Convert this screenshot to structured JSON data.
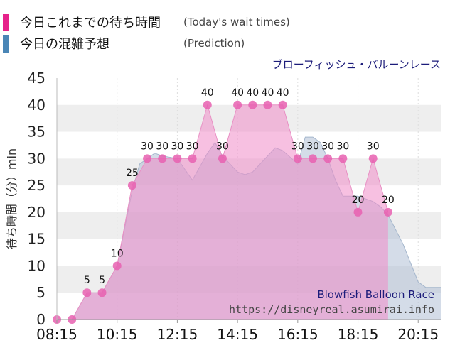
{
  "legend": {
    "actual_label": "今日これまでの待ち時間",
    "actual_sub": "(Today's wait times)",
    "prediction_label": "今日の混雑予想",
    "prediction_sub": "(Prediction)"
  },
  "attraction_name_jp": "ブローフィッシュ・バルーンレース",
  "watermark": {
    "name": "Blowfish Balloon Race",
    "url": "https://disneyreal.asumirai.info"
  },
  "colors": {
    "actual_legend": "#e6228a",
    "prediction_legend": "#4a86b6",
    "actual_fill": "#f08cc8",
    "actual_point": "#e860b0",
    "prediction_fill": "#b0c0d6",
    "plot_band": "#eeeeee",
    "title_text": "#1c1c7a"
  },
  "chart_data": {
    "type": "area",
    "xlabel": "",
    "ylabel": "待ち時間（分）min",
    "ylim": [
      0,
      45
    ],
    "xlim": [
      "08:15",
      "21:00"
    ],
    "yticks": [
      0,
      5,
      10,
      15,
      20,
      25,
      30,
      35,
      40,
      45
    ],
    "xticks": [
      "08:15",
      "10:15",
      "12:15",
      "14:15",
      "16:15",
      "18:15",
      "20:15"
    ],
    "grid": true,
    "series": [
      {
        "name": "今日の混雑予想",
        "points": [
          [
            "08:15",
            0
          ],
          [
            "08:45",
            0
          ],
          [
            "09:15",
            5
          ],
          [
            "09:45",
            5
          ],
          [
            "10:15",
            10
          ],
          [
            "10:45",
            24
          ],
          [
            "11:00",
            29
          ],
          [
            "11:30",
            31
          ],
          [
            "11:45",
            30.5
          ],
          [
            "12:15",
            30
          ],
          [
            "12:45",
            26
          ],
          [
            "13:15",
            31
          ],
          [
            "13:30",
            33
          ],
          [
            "13:45",
            30.5
          ],
          [
            "14:15",
            27.5
          ],
          [
            "14:30",
            27
          ],
          [
            "14:45",
            27.5
          ],
          [
            "15:15",
            30.5
          ],
          [
            "15:30",
            32
          ],
          [
            "15:45",
            31.5
          ],
          [
            "16:15",
            29
          ],
          [
            "16:30",
            34
          ],
          [
            "16:45",
            34
          ],
          [
            "17:00",
            33
          ],
          [
            "17:15",
            30
          ],
          [
            "17:30",
            26
          ],
          [
            "17:45",
            23
          ],
          [
            "18:15",
            23
          ],
          [
            "18:45",
            22
          ],
          [
            "19:00",
            21
          ],
          [
            "19:15",
            19.5
          ],
          [
            "19:45",
            14
          ],
          [
            "20:15",
            7
          ],
          [
            "20:30",
            6
          ],
          [
            "21:00",
            6
          ]
        ]
      },
      {
        "name": "今日これまでの待ち時間",
        "points": [
          [
            "08:15",
            0
          ],
          [
            "08:45",
            0
          ],
          [
            "09:15",
            5
          ],
          [
            "09:45",
            5
          ],
          [
            "10:15",
            10
          ],
          [
            "10:45",
            25
          ],
          [
            "11:15",
            30
          ],
          [
            "11:45",
            30
          ],
          [
            "12:15",
            30
          ],
          [
            "12:45",
            30
          ],
          [
            "13:15",
            40
          ],
          [
            "13:45",
            30
          ],
          [
            "14:15",
            40
          ],
          [
            "14:45",
            40
          ],
          [
            "15:15",
            40
          ],
          [
            "15:45",
            40
          ],
          [
            "16:15",
            30
          ],
          [
            "16:45",
            30
          ],
          [
            "17:15",
            30
          ],
          [
            "17:45",
            30
          ],
          [
            "18:15",
            20
          ],
          [
            "18:45",
            30
          ],
          [
            "19:15",
            20
          ]
        ],
        "point_labels": [
          {
            "x": "09:15",
            "label": "5"
          },
          {
            "x": "09:45",
            "label": "5"
          },
          {
            "x": "10:15",
            "label": "10"
          },
          {
            "x": "10:45",
            "label": "25"
          },
          {
            "x": "11:15",
            "label": "30"
          },
          {
            "x": "11:45",
            "label": "30"
          },
          {
            "x": "12:15",
            "label": "30"
          },
          {
            "x": "12:45",
            "label": "30"
          },
          {
            "x": "13:15",
            "label": "40"
          },
          {
            "x": "13:45",
            "label": "30"
          },
          {
            "x": "14:15",
            "label": "40"
          },
          {
            "x": "14:45",
            "label": "40"
          },
          {
            "x": "15:15",
            "label": "40"
          },
          {
            "x": "15:45",
            "label": "40"
          },
          {
            "x": "16:15",
            "label": "30"
          },
          {
            "x": "16:45",
            "label": "30"
          },
          {
            "x": "17:15",
            "label": "30"
          },
          {
            "x": "17:45",
            "label": "30"
          },
          {
            "x": "18:15",
            "label": "20"
          },
          {
            "x": "18:45",
            "label": "30"
          },
          {
            "x": "19:15",
            "label": "20"
          }
        ]
      }
    ]
  }
}
